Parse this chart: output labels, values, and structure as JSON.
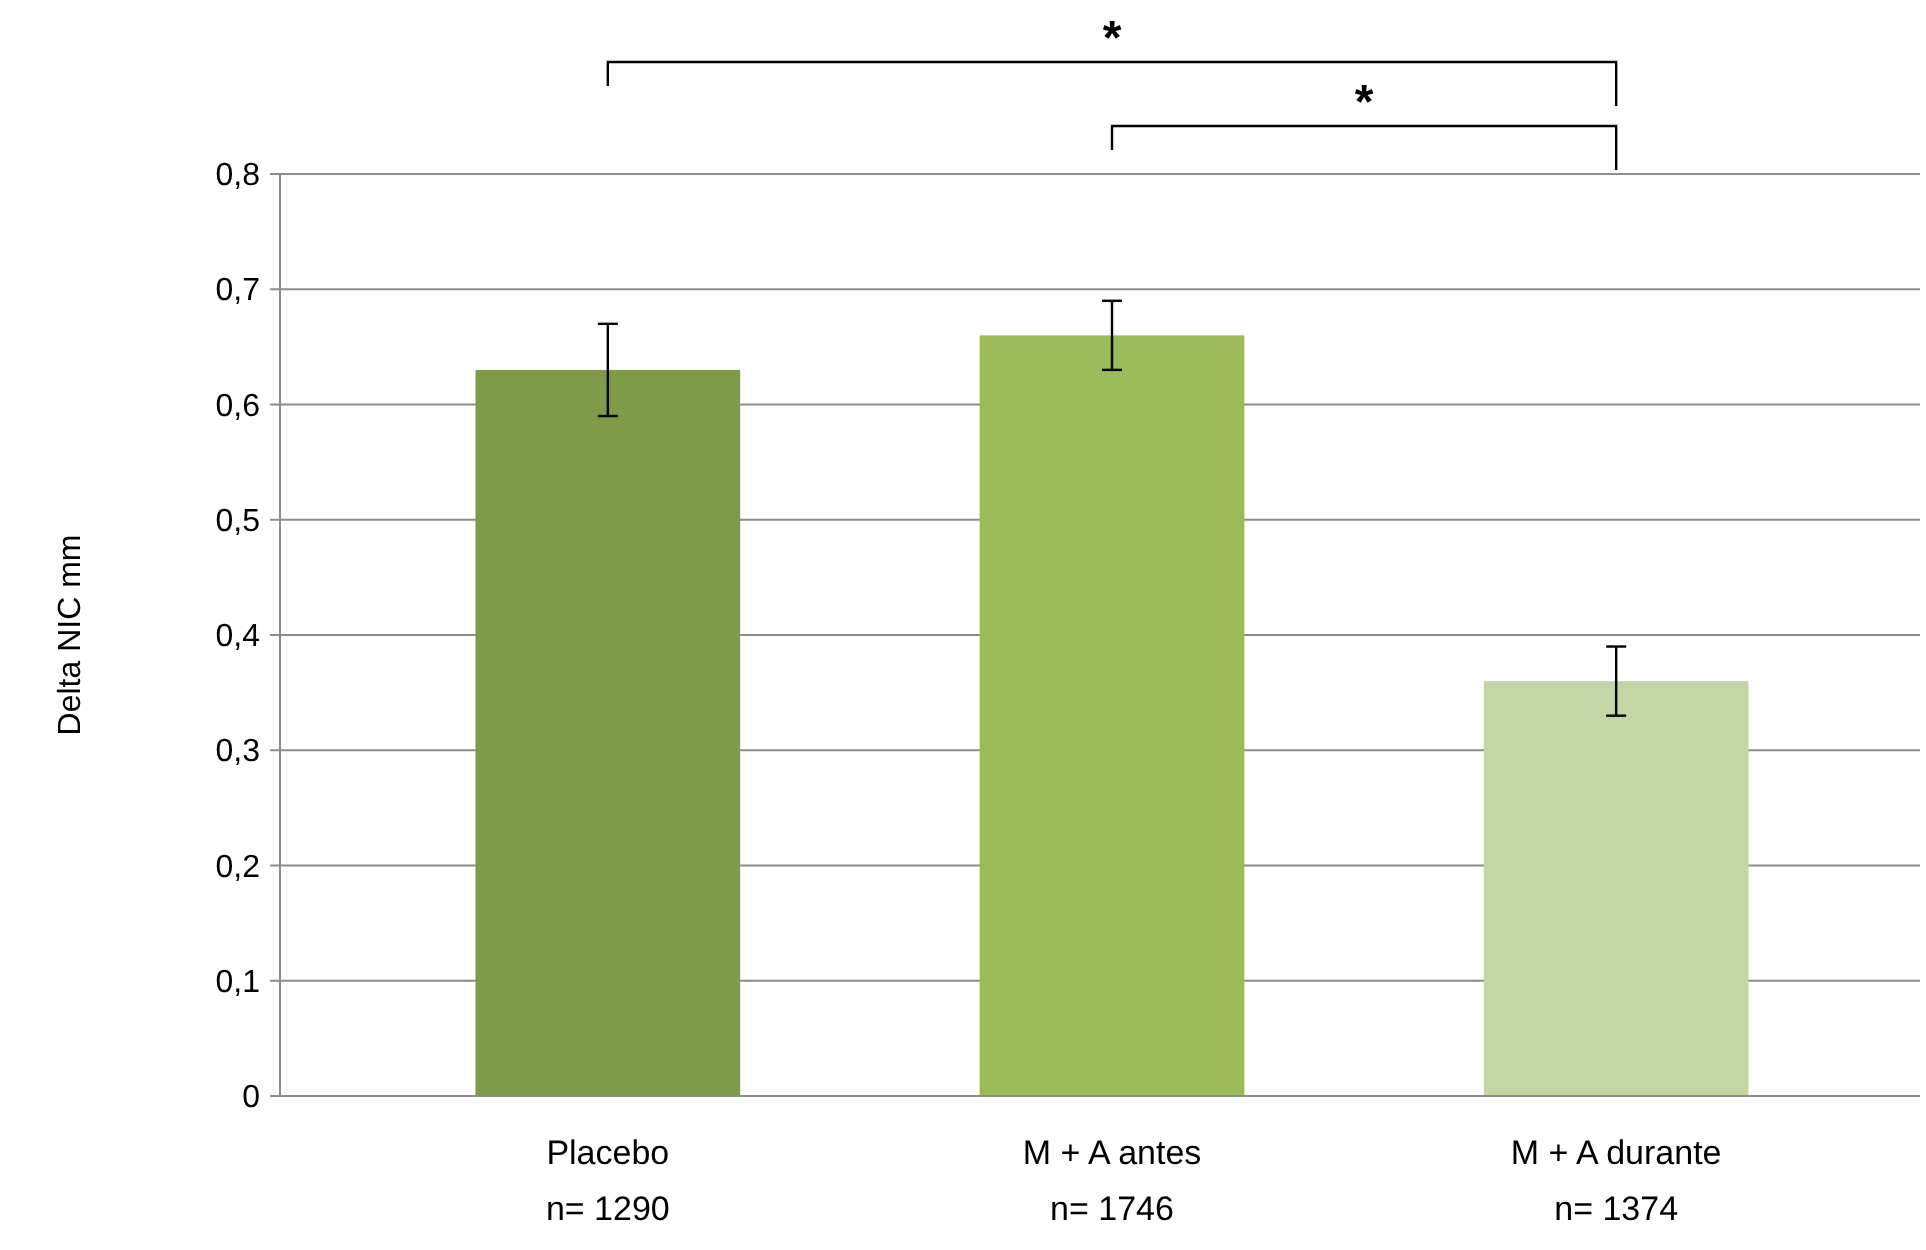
{
  "chart_data": {
    "type": "bar",
    "ylabel": "Delta NIC mm",
    "categories": [
      "Placebo\nn= 1290",
      "M + A antes\nn= 1746",
      "M + A durante\nn= 1374"
    ],
    "values": [
      0.63,
      0.66,
      0.36
    ],
    "colors": [
      "#7f9a48",
      "#9bbb59",
      "#c4d6a6"
    ],
    "errors": [
      0.04,
      0.03,
      0.03
    ],
    "ylim": [
      0,
      0.8
    ],
    "yticks": [
      0,
      {
        "value": 0.1,
        "label": "0,1"
      },
      {
        "value": 0.2,
        "label": "0,2"
      },
      {
        "value": 0.3,
        "label": "0,3"
      },
      {
        "value": 0.4,
        "label": "0,4"
      },
      {
        "value": 0.5,
        "label": "0,5"
      },
      {
        "value": 0.6,
        "label": "0,6"
      },
      {
        "value": 0.7,
        "label": "0,7"
      },
      {
        "value": 0.8,
        "label": "0,8"
      }
    ],
    "grid": "y",
    "annotations": [
      "*",
      "*"
    ]
  }
}
